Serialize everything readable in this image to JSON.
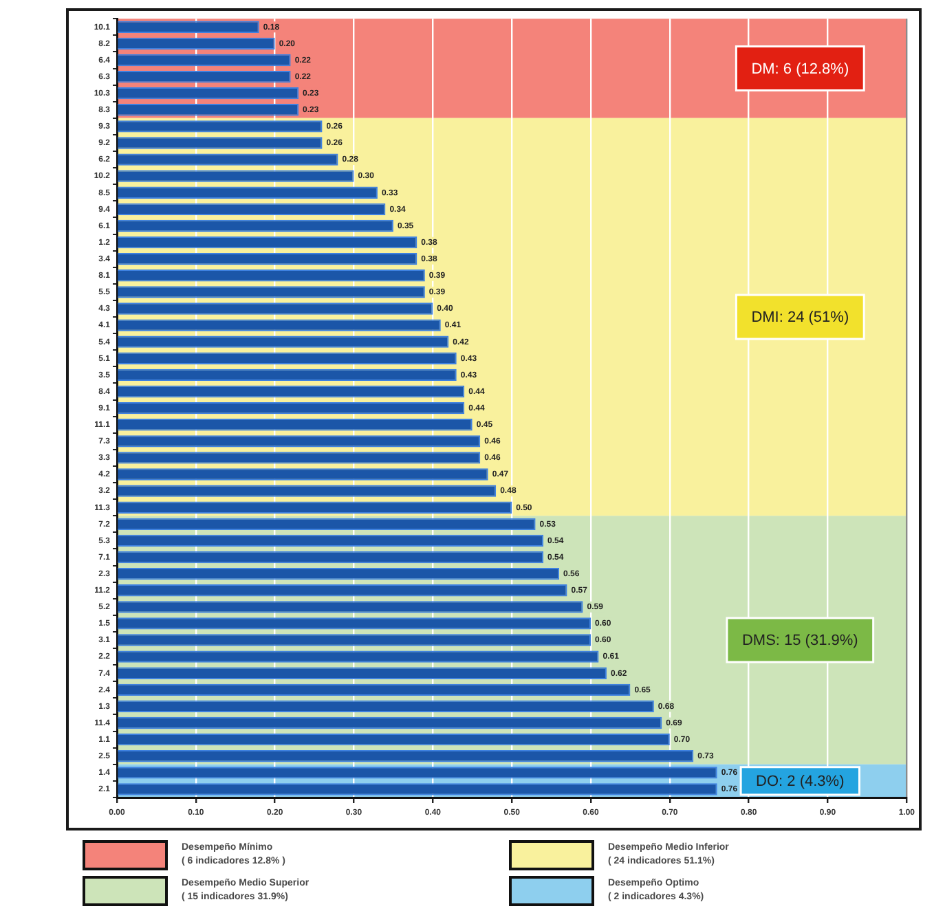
{
  "chart_data": {
    "type": "bar",
    "orientation": "horizontal",
    "categories": [
      "10.1",
      "8.2",
      "6.4",
      "6.3",
      "10.3",
      "8.3",
      "9.3",
      "9.2",
      "6.2",
      "10.2",
      "8.5",
      "9.4",
      "6.1",
      "1.2",
      "3.4",
      "8.1",
      "5.5",
      "4.3",
      "4.1",
      "5.4",
      "5.1",
      "3.5",
      "8.4",
      "9.1",
      "11.1",
      "7.3",
      "3.3",
      "4.2",
      "3.2",
      "11.3",
      "7.2",
      "5.3",
      "7.1",
      "2.3",
      "11.2",
      "5.2",
      "1.5",
      "3.1",
      "2.2",
      "7.4",
      "2.4",
      "1.3",
      "11.4",
      "1.1",
      "2.5",
      "1.4",
      "2.1"
    ],
    "values": [
      0.18,
      0.2,
      0.22,
      0.22,
      0.23,
      0.23,
      0.26,
      0.26,
      0.28,
      0.3,
      0.33,
      0.34,
      0.35,
      0.38,
      0.38,
      0.39,
      0.39,
      0.4,
      0.41,
      0.42,
      0.43,
      0.43,
      0.44,
      0.44,
      0.45,
      0.46,
      0.46,
      0.47,
      0.48,
      0.5,
      0.53,
      0.54,
      0.54,
      0.56,
      0.57,
      0.59,
      0.6,
      0.6,
      0.61,
      0.62,
      0.65,
      0.68,
      0.69,
      0.7,
      0.73,
      0.76,
      0.76
    ],
    "value_labels": [
      "0.18",
      "0.20",
      "0.22",
      "0.22",
      "0.23",
      "0.23",
      "0.26",
      "0.26",
      "0.28",
      "0.30",
      "0.33",
      "0.34",
      "0.35",
      "0.38",
      "0.38",
      "0.39",
      "0.39",
      "0.40",
      "0.41",
      "0.42",
      "0.43",
      "0.43",
      "0.44",
      "0.44",
      "0.45",
      "0.46",
      "0.46",
      "0.47",
      "0.48",
      "0.50",
      "0.53",
      "0.54",
      "0.54",
      "0.56",
      "0.57",
      "0.59",
      "0.60",
      "0.60",
      "0.61",
      "0.62",
      "0.65",
      "0.68",
      "0.69",
      "0.70",
      "0.73",
      "0.76",
      "0.76"
    ],
    "color": "#1b56a8",
    "xlim": [
      0,
      1
    ],
    "xticks": [
      {
        "value": 0,
        "label": "0.00"
      },
      {
        "value": 0.1,
        "label": "0.10"
      },
      {
        "value": 0.2,
        "label": "0.20"
      },
      {
        "value": 0.3,
        "label": "0.30"
      },
      {
        "value": 0.4,
        "label": "0.40"
      },
      {
        "value": 0.5,
        "label": "0.50"
      },
      {
        "value": 0.6,
        "label": "0.60"
      },
      {
        "value": 0.7,
        "label": "0.70"
      },
      {
        "value": 0.8,
        "label": "0.80"
      },
      {
        "value": 0.9,
        "label": "0.90"
      },
      {
        "value": 1,
        "label": "1.00"
      }
    ],
    "grid": "x",
    "bands": [
      {
        "axis": "y",
        "from": "10.1",
        "to": "8.3",
        "label": "DM: 6 (12.8%)",
        "color": "#f4837a"
      },
      {
        "axis": "y",
        "from": "9.3",
        "to": "11.3",
        "label": "DMI: 24 (51%)",
        "color": "#f9f19d"
      },
      {
        "axis": "y",
        "from": "7.2",
        "to": "2.5",
        "label": "DMS: 15 (31.9%)",
        "color": "#cde4b9"
      },
      {
        "axis": "y",
        "from": "1.4",
        "to": "2.1",
        "label": "DO: 2 (4.3%)",
        "color": "#8ecfee"
      }
    ],
    "annotations": [
      "Desempeño Mínimo\n( 6 indicadores 12.8% )",
      "Desempeño Medio Inferior\n( 24 indicadores 51.1%)",
      "Desempeño Medio Superior\n( 15 indicadores 31.9%)",
      "Desempeño Optimo\n( 2 indicadores 4.3%)"
    ]
  }
}
